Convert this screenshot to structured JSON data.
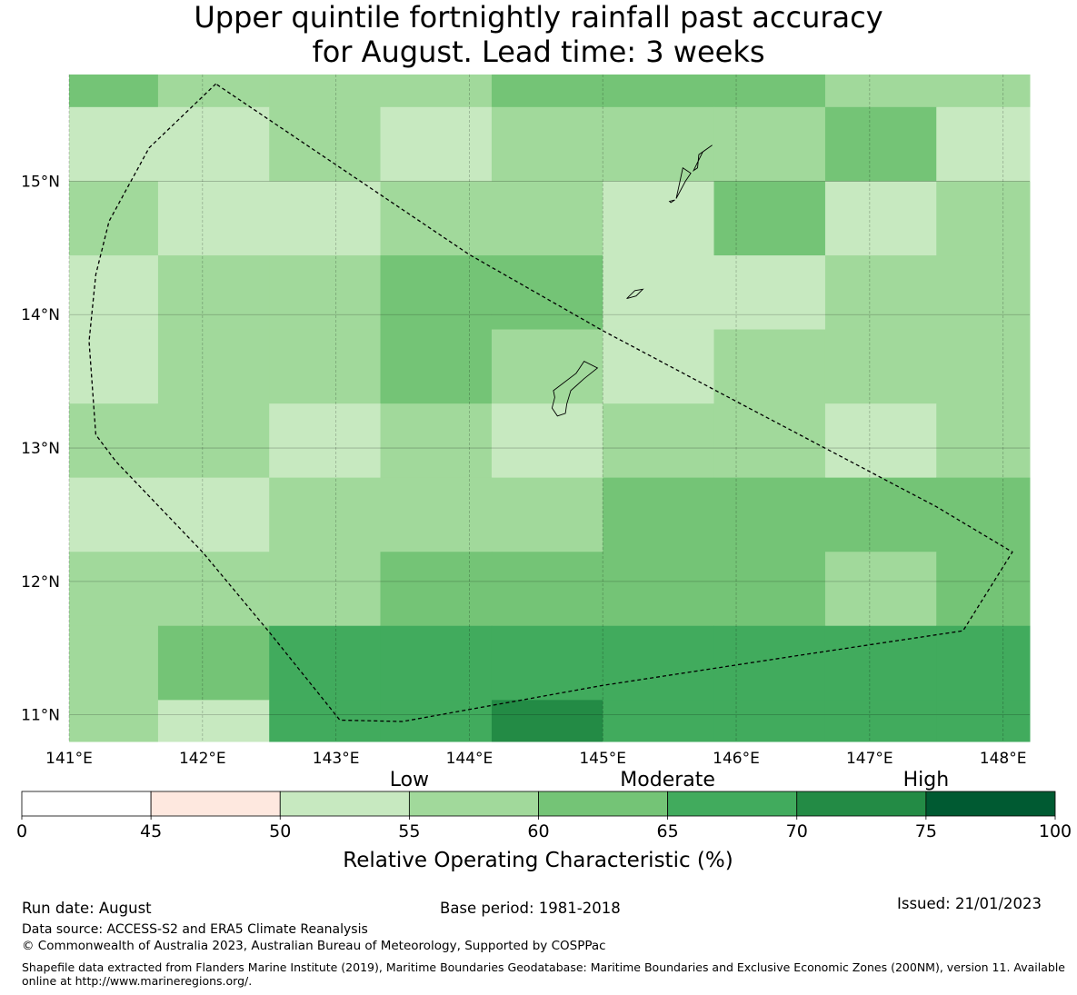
{
  "title": {
    "line1": "Upper quintile fortnightly rainfall past accuracy",
    "line2": "for August. Lead time: 3 weeks"
  },
  "map": {
    "lon_min": 141.0,
    "lon_max": 148.2,
    "lat_min": 10.8,
    "lat_max": 15.8,
    "x_tick_labels": [
      "141°E",
      "142°E",
      "143°E",
      "144°E",
      "145°E",
      "146°E",
      "147°E",
      "148°E"
    ],
    "x_tick_values": [
      141,
      142,
      143,
      144,
      145,
      146,
      147,
      148
    ],
    "y_tick_labels": [
      "15°N",
      "14°N",
      "13°N",
      "12°N",
      "11°N"
    ],
    "y_tick_values": [
      15,
      14,
      13,
      12,
      11
    ],
    "grid_lon_edges": [
      141.0,
      141.667,
      142.5,
      143.333,
      144.167,
      145.0,
      145.833,
      146.667,
      147.5,
      148.2
    ],
    "grid_lat_edges": [
      15.8,
      15.556,
      15.0,
      14.444,
      13.889,
      13.333,
      12.778,
      12.222,
      11.667,
      11.111,
      10.8
    ],
    "grid_roc_band_values": [
      [
        62.5,
        57.5,
        57.5,
        57.5,
        62.5,
        62.5,
        62.5,
        57.5,
        57.5
      ],
      [
        52.5,
        52.5,
        57.5,
        52.5,
        57.5,
        57.5,
        57.5,
        62.5,
        52.5
      ],
      [
        57.5,
        52.5,
        52.5,
        57.5,
        57.5,
        52.5,
        62.5,
        52.5,
        57.5
      ],
      [
        52.5,
        57.5,
        57.5,
        62.5,
        62.5,
        52.5,
        52.5,
        57.5,
        57.5
      ],
      [
        52.5,
        57.5,
        57.5,
        62.5,
        57.5,
        52.5,
        57.5,
        57.5,
        57.5
      ],
      [
        57.5,
        57.5,
        52.5,
        57.5,
        52.5,
        57.5,
        57.5,
        52.5,
        57.5
      ],
      [
        52.5,
        52.5,
        57.5,
        57.5,
        57.5,
        62.5,
        62.5,
        62.5,
        62.5
      ],
      [
        57.5,
        57.5,
        57.5,
        62.5,
        62.5,
        62.5,
        62.5,
        57.5,
        62.5
      ],
      [
        57.5,
        62.5,
        67.5,
        67.5,
        67.5,
        67.5,
        67.5,
        67.5,
        67.5
      ],
      [
        57.5,
        52.5,
        67.5,
        67.5,
        72.5,
        67.5,
        67.5,
        67.5,
        67.5
      ]
    ],
    "eez_boundary": [
      [
        142.1,
        15.73
      ],
      [
        141.6,
        15.25
      ],
      [
        141.3,
        14.7
      ],
      [
        141.2,
        14.3
      ],
      [
        141.15,
        13.8
      ],
      [
        141.2,
        13.1
      ],
      [
        141.35,
        12.9
      ],
      [
        142.0,
        12.22
      ],
      [
        142.5,
        11.62
      ],
      [
        143.03,
        10.96
      ],
      [
        143.5,
        10.95
      ],
      [
        145.0,
        11.22
      ],
      [
        146.5,
        11.45
      ],
      [
        147.7,
        11.63
      ],
      [
        148.07,
        12.22
      ],
      [
        147.5,
        12.56
      ],
      [
        146.0,
        13.35
      ],
      [
        145.0,
        13.88
      ],
      [
        144.0,
        14.45
      ],
      [
        142.1,
        15.73
      ]
    ],
    "islands": [
      [
        [
          144.63,
          13.43
        ],
        [
          144.8,
          13.56
        ],
        [
          144.86,
          13.65
        ],
        [
          144.96,
          13.6
        ],
        [
          144.86,
          13.52
        ],
        [
          144.76,
          13.43
        ],
        [
          144.73,
          13.33
        ],
        [
          144.72,
          13.26
        ],
        [
          144.66,
          13.24
        ],
        [
          144.62,
          13.3
        ],
        [
          144.64,
          13.38
        ]
      ],
      [
        [
          145.18,
          14.12
        ],
        [
          145.24,
          14.18
        ],
        [
          145.3,
          14.19
        ],
        [
          145.25,
          14.14
        ]
      ],
      [
        [
          145.55,
          14.87
        ],
        [
          145.62,
          15.0
        ],
        [
          145.66,
          15.06
        ],
        [
          145.6,
          15.1
        ],
        [
          145.57,
          14.96
        ]
      ],
      [
        [
          145.68,
          15.08
        ],
        [
          145.75,
          15.22
        ],
        [
          145.82,
          15.27
        ],
        [
          145.72,
          15.2
        ],
        [
          145.71,
          15.1
        ]
      ],
      [
        [
          145.5,
          14.85
        ],
        [
          145.54,
          14.86
        ],
        [
          145.51,
          14.84
        ]
      ]
    ]
  },
  "legend": {
    "category_labels": [
      "Low",
      "Moderate",
      "High"
    ],
    "boundaries": [
      0,
      45,
      50,
      55,
      60,
      65,
      70,
      75,
      100
    ],
    "tick_labels": [
      "0",
      "45",
      "50",
      "55",
      "60",
      "65",
      "70",
      "75",
      "100"
    ],
    "colors": [
      "#ffffff",
      "#fee8df",
      "#c7e9c0",
      "#a1d99b",
      "#74c476",
      "#41ab5d",
      "#238b45",
      "#005a32"
    ],
    "axis_label": "Relative Operating Characteristic (%)"
  },
  "footer": {
    "run_date": "Run date: August",
    "base_period": "Base period: 1981-2018",
    "issued": "Issued: 21/01/2023",
    "data_source": "Data source: ACCESS-S2 and ERA5 Climate Reanalysis",
    "copyright": "© Commonwealth of Australia 2023, Australian Bureau of Meteorology, Supported by COSPPac",
    "shapefile_note": "Shapefile data extracted from Flanders Marine Institute (2019), Maritime Boundaries Geodatabase: Maritime Boundaries and Exclusive Economic Zones (200NM), version 11. Available online at http://www.marineregions.org/."
  }
}
